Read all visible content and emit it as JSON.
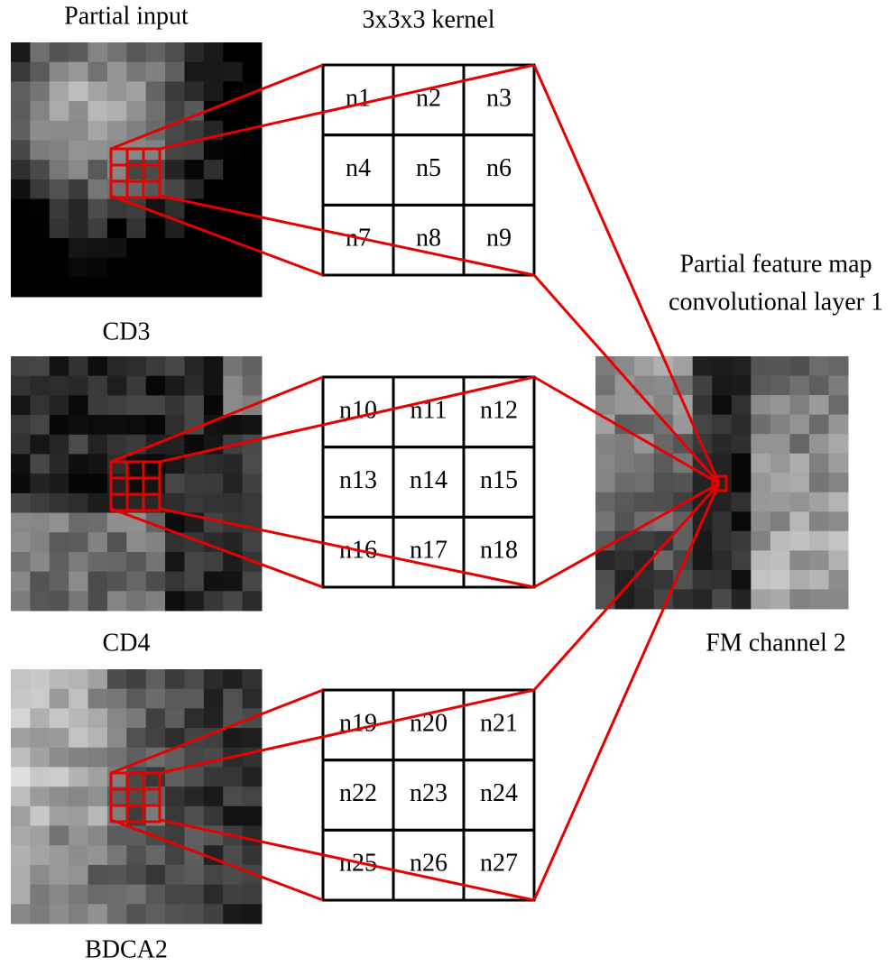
{
  "input_title": "Partial input",
  "kernel_title": "3x3x3 kernel",
  "inputs": [
    {
      "label": "CD3"
    },
    {
      "label": "CD4"
    },
    {
      "label": "BDCA2"
    }
  ],
  "kernels": [
    {
      "cells": [
        "n1",
        "n2",
        "n3",
        "n4",
        "n5",
        "n6",
        "n7",
        "n8",
        "n9"
      ]
    },
    {
      "cells": [
        "n10",
        "n11",
        "n12",
        "n13",
        "n14",
        "n15",
        "n16",
        "n17",
        "n18"
      ]
    },
    {
      "cells": [
        "n19",
        "n20",
        "n21",
        "n22",
        "n23",
        "n24",
        "n25",
        "n26",
        "n27"
      ]
    }
  ],
  "output": {
    "title_lines": [
      "Partial feature map",
      "convolutional layer 1"
    ],
    "label": "FM channel 2"
  }
}
